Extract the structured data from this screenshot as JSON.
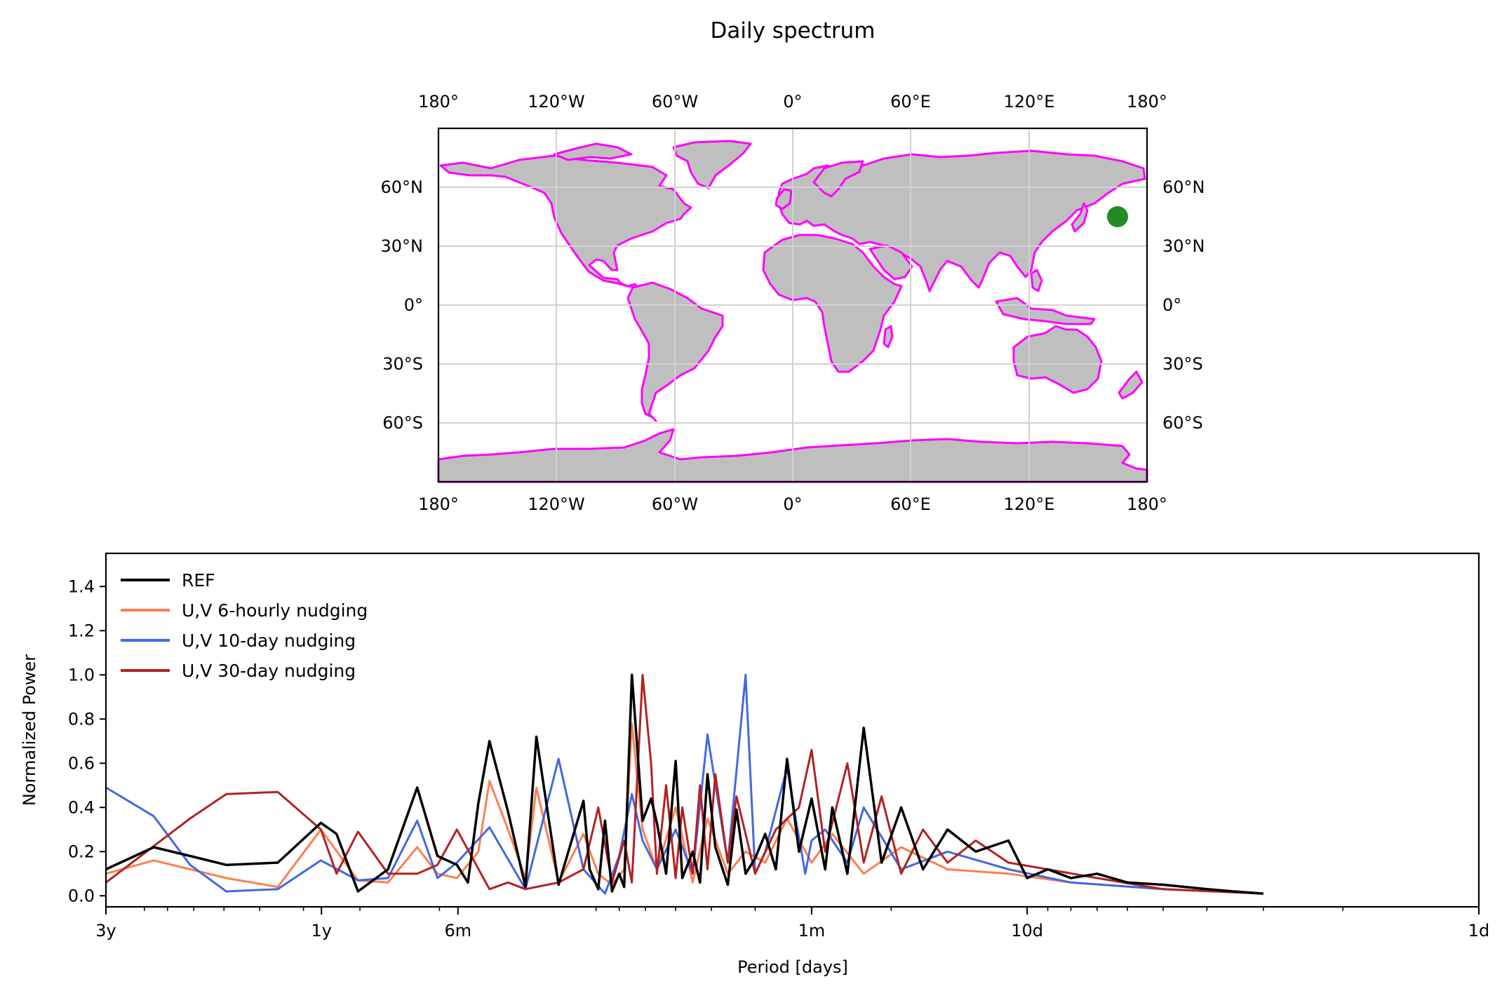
{
  "figure": {
    "title": "Daily spectrum"
  },
  "map": {
    "lon_ticks": [
      "180°",
      "120°W",
      "60°W",
      "0°",
      "60°E",
      "120°E",
      "180°"
    ],
    "lat_ticks": [
      "60°N",
      "30°N",
      "0°",
      "30°S",
      "60°S"
    ],
    "lon_values": [
      -180,
      -120,
      -60,
      0,
      60,
      120,
      180
    ],
    "lat_values": [
      60,
      30,
      0,
      -30,
      -60
    ],
    "lon_range": [
      -180,
      180
    ],
    "lat_range": [
      -90,
      90
    ],
    "land_color": "#bfbfbf",
    "coast_color": "#ff00ff",
    "grid_color": "#d3d3d3",
    "marker": {
      "lon": 165,
      "lat": 45,
      "color": "#228b22"
    }
  },
  "chart_data": {
    "type": "line",
    "title": "",
    "xlabel": "Period [days]",
    "ylabel": "Normalized Power",
    "ylim": [
      -0.05,
      1.55
    ],
    "yticks": [
      0.0,
      0.2,
      0.4,
      0.6,
      0.8,
      1.0,
      1.2,
      1.4
    ],
    "ytick_labels": [
      "0.0",
      "0.2",
      "0.4",
      "0.6",
      "0.8",
      "1.0",
      "1.2",
      "1.4"
    ],
    "xscale": "log (period, reversed)",
    "xlim_days": [
      1095,
      1
    ],
    "xticks_days": [
      1095,
      365,
      182,
      30,
      10,
      1
    ],
    "xtick_labels": [
      "3y",
      "1y",
      "6m",
      "1m",
      "10d",
      "1d"
    ],
    "legend_position": "top-left",
    "grid": false,
    "series": [
      {
        "name": "REF",
        "color": "#000000",
        "x": [
          1095,
          858,
          713,
          593,
          456,
          366,
          338,
          303,
          260,
          224,
          202,
          183,
          173,
          164,
          155,
          141,
          129,
          122,
          109,
          96,
          93,
          89,
          86,
          83,
          80,
          78,
          75,
          71,
          68,
          66,
          63,
          60,
          58,
          55,
          53,
          51,
          49,
          46,
          44,
          42,
          40,
          38,
          36,
          34,
          32,
          30,
          28,
          27,
          25,
          23,
          21,
          19,
          17,
          15,
          13,
          11,
          10,
          9,
          8,
          7,
          6,
          5,
          4,
          3.5,
          3
        ],
        "values": [
          0.12,
          0.22,
          0.18,
          0.14,
          0.15,
          0.33,
          0.28,
          0.02,
          0.12,
          0.49,
          0.18,
          0.14,
          0.06,
          0.42,
          0.7,
          0.38,
          0.04,
          0.72,
          0.05,
          0.43,
          0.12,
          0.03,
          0.34,
          0.02,
          0.1,
          0.04,
          1.0,
          0.34,
          0.44,
          0.33,
          0.1,
          0.61,
          0.08,
          0.2,
          0.06,
          0.55,
          0.22,
          0.05,
          0.39,
          0.1,
          0.17,
          0.28,
          0.12,
          0.62,
          0.2,
          0.44,
          0.12,
          0.4,
          0.1,
          0.76,
          0.15,
          0.4,
          0.12,
          0.3,
          0.2,
          0.25,
          0.08,
          0.12,
          0.08,
          0.1,
          0.06,
          0.05,
          0.03,
          0.02,
          0.01
        ]
      },
      {
        "name": "U,V 6-hourly nudging",
        "color": "#ff7f50",
        "x": [
          1095,
          858,
          593,
          456,
          366,
          303,
          260,
          224,
          202,
          183,
          164,
          155,
          141,
          129,
          122,
          109,
          96,
          89,
          83,
          78,
          75,
          71,
          66,
          60,
          55,
          51,
          46,
          42,
          38,
          34,
          30,
          27,
          23,
          19,
          15,
          11,
          8,
          5,
          3
        ],
        "values": [
          0.1,
          0.16,
          0.08,
          0.04,
          0.3,
          0.07,
          0.06,
          0.22,
          0.1,
          0.08,
          0.2,
          0.52,
          0.3,
          0.08,
          0.49,
          0.06,
          0.28,
          0.1,
          0.05,
          0.12,
          0.78,
          0.3,
          0.12,
          0.4,
          0.06,
          0.35,
          0.1,
          0.2,
          0.15,
          0.35,
          0.15,
          0.28,
          0.1,
          0.22,
          0.12,
          0.1,
          0.06,
          0.03,
          0.01
        ]
      },
      {
        "name": "U,V 10-day nudging",
        "color": "#4169e1",
        "x": [
          1095,
          858,
          713,
          593,
          456,
          366,
          303,
          260,
          224,
          202,
          183,
          155,
          129,
          109,
          96,
          86,
          80,
          75,
          71,
          66,
          60,
          55,
          51,
          46,
          42,
          40,
          38,
          34,
          31,
          30,
          28,
          25,
          23,
          19,
          15,
          11,
          8,
          5,
          3
        ],
        "values": [
          0.49,
          0.36,
          0.14,
          0.02,
          0.03,
          0.16,
          0.07,
          0.08,
          0.34,
          0.08,
          0.15,
          0.31,
          0.03,
          0.62,
          0.12,
          0.01,
          0.18,
          0.46,
          0.25,
          0.12,
          0.3,
          0.1,
          0.73,
          0.15,
          1.0,
          0.1,
          0.2,
          0.58,
          0.1,
          0.25,
          0.3,
          0.15,
          0.4,
          0.12,
          0.2,
          0.12,
          0.06,
          0.03,
          0.01
        ]
      },
      {
        "name": "U,V 30-day nudging",
        "color": "#b22222",
        "x": [
          1095,
          713,
          593,
          456,
          366,
          338,
          303,
          260,
          224,
          202,
          183,
          155,
          141,
          129,
          109,
          96,
          89,
          83,
          78,
          75,
          71,
          68,
          66,
          63,
          60,
          58,
          55,
          53,
          51,
          49,
          46,
          44,
          40,
          36,
          32,
          30,
          28,
          25,
          23,
          21,
          19,
          17,
          15,
          13,
          11,
          9,
          7,
          5,
          3
        ],
        "values": [
          0.06,
          0.35,
          0.46,
          0.47,
          0.3,
          0.1,
          0.29,
          0.1,
          0.1,
          0.14,
          0.3,
          0.03,
          0.06,
          0.03,
          0.06,
          0.12,
          0.4,
          0.06,
          0.25,
          0.06,
          1.0,
          0.6,
          0.1,
          0.5,
          0.08,
          0.4,
          0.1,
          0.5,
          0.12,
          0.55,
          0.15,
          0.45,
          0.1,
          0.3,
          0.4,
          0.66,
          0.2,
          0.6,
          0.15,
          0.45,
          0.1,
          0.3,
          0.15,
          0.25,
          0.15,
          0.12,
          0.08,
          0.03,
          0.01
        ]
      }
    ]
  }
}
